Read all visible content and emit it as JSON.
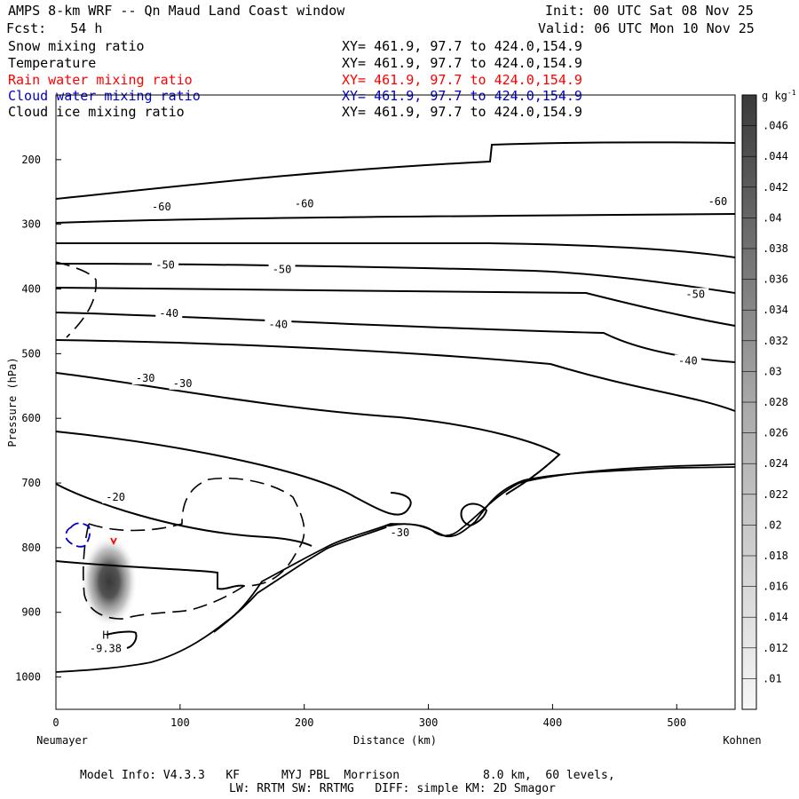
{
  "header": {
    "title": "AMPS 8-km WRF -- Qn Maud Land Coast window",
    "fcst": "Fcst:   54 h",
    "init": "Init: 00 UTC Sat 08 Nov 25",
    "valid": "Valid: 06 UTC Mon 10 Nov 25"
  },
  "fields": [
    {
      "name": "Snow mixing ratio",
      "xy": "XY= 461.9, 97.7 to 424.0,154.9",
      "color": "#000000"
    },
    {
      "name": "Temperature",
      "xy": "XY= 461.9, 97.7 to 424.0,154.9",
      "color": "#000000"
    },
    {
      "name": "Rain water mixing ratio",
      "xy": "XY= 461.9, 97.7 to 424.0,154.9",
      "color": "#ff0000"
    },
    {
      "name": "Cloud water mixing ratio",
      "xy": "XY= 461.9, 97.7 to 424.0,154.9",
      "color": "#0000cc"
    },
    {
      "name": "Cloud ice mixing ratio",
      "xy": "XY= 461.9, 97.7 to 424.0,154.9",
      "color": "#000000"
    }
  ],
  "footer": {
    "line1": "Model Info: V4.3.3   KF      MYJ PBL  Morrison            8.0 km,  60 levels,",
    "line2": "LW: RRTM SW: RRTMG   DIFF: simple KM: 2D Smagor"
  },
  "chart_data": {
    "type": "cross-section contour",
    "xlabel": "Distance (km)",
    "ylabel": "Pressure (hPa)",
    "x_start_label": "Neumayer",
    "x_end_label": "Kohnen",
    "xlim": [
      0,
      547
    ],
    "ylim": [
      1050,
      100
    ],
    "xticks": [
      0,
      100,
      200,
      300,
      400,
      500
    ],
    "yticks": [
      200,
      300,
      400,
      500,
      600,
      700,
      800,
      900,
      1000
    ],
    "colorbar": {
      "unit": "g kg",
      "unit_exp": "-1",
      "levels": [
        ".01",
        ".012",
        ".014",
        ".016",
        ".018",
        ".02",
        ".022",
        ".024",
        ".026",
        ".028",
        ".03",
        ".032",
        ".034",
        ".036",
        ".038",
        ".04",
        ".042",
        ".044",
        ".046"
      ]
    },
    "temperature_labels": [
      {
        "text": "-60",
        "x": 85,
        "p": 273
      },
      {
        "text": "-60",
        "x": 200,
        "p": 268
      },
      {
        "text": "-60",
        "x": 533,
        "p": 265
      },
      {
        "text": "-50",
        "x": 88,
        "p": 363
      },
      {
        "text": "-50",
        "x": 182,
        "p": 370
      },
      {
        "text": "-50",
        "x": 515,
        "p": 408
      },
      {
        "text": "-40",
        "x": 91,
        "p": 438
      },
      {
        "text": "-40",
        "x": 179,
        "p": 455
      },
      {
        "text": "-40",
        "x": 509,
        "p": 511
      },
      {
        "text": "-30",
        "x": 72,
        "p": 538
      },
      {
        "text": "-30",
        "x": 102,
        "p": 546
      },
      {
        "text": "-30",
        "x": 277,
        "p": 777
      },
      {
        "text": "-20",
        "x": 48,
        "p": 722
      }
    ],
    "minimum": {
      "symbol": "H",
      "value": "-9.38",
      "x": 40,
      "p": 948
    },
    "snow_max_gkg": 0.046
  }
}
